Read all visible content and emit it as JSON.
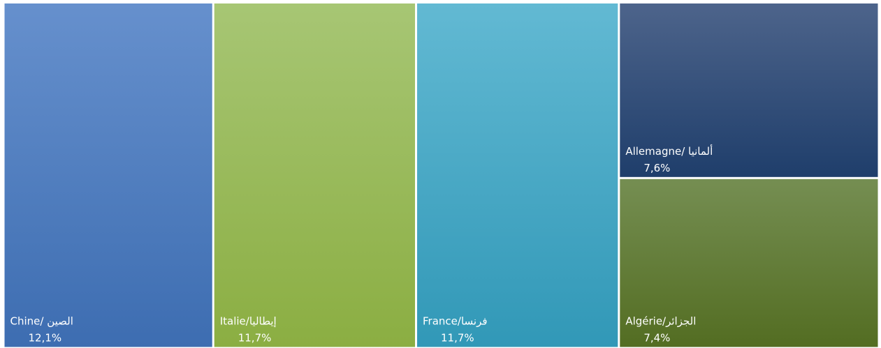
{
  "chart_data": {
    "type": "treemap",
    "categories": [
      "Chine/ الصين",
      "Italie/إيطاليا",
      "France/فرنسا",
      "Allemagne/ ألمانيا",
      "Algérie/الجزائر"
    ],
    "values": [
      12.1,
      11.7,
      11.7,
      7.6,
      7.4
    ],
    "value_labels": [
      "12,1%",
      "11,7%",
      "11,7%",
      "7,6%",
      "7,4%"
    ],
    "colors": [
      [
        "#6690cd",
        "#3d6db1"
      ],
      [
        "#a7c674",
        "#8bae42"
      ],
      [
        "#62b9d3",
        "#3198b7"
      ],
      [
        "#4d648b",
        "#1f3e6b"
      ],
      [
        "#758e52",
        "#536d22"
      ]
    ]
  }
}
